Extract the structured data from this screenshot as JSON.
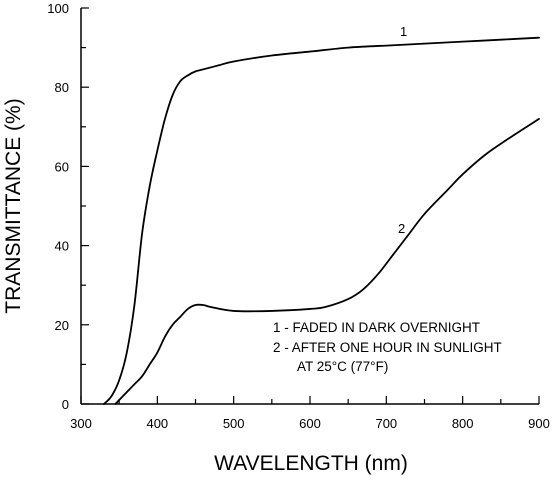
{
  "chart_data": {
    "type": "line",
    "xlabel": "WAVELENGTH (nm)",
    "ylabel": "TRANSMITTANCE (%)",
    "xlim": [
      300,
      900
    ],
    "ylim": [
      0,
      100
    ],
    "x_ticks": [
      300,
      400,
      500,
      600,
      700,
      800,
      900
    ],
    "y_ticks": [
      0,
      20,
      40,
      60,
      80,
      100
    ],
    "series": [
      {
        "name": "1",
        "x": [
          330,
          340,
          350,
          360,
          370,
          380,
          390,
          400,
          410,
          420,
          430,
          440,
          450,
          460,
          480,
          500,
          550,
          600,
          650,
          700,
          750,
          800,
          850,
          900
        ],
        "y": [
          0,
          2,
          6,
          13,
          25,
          43,
          55,
          64,
          72,
          78,
          81.5,
          83,
          84,
          84.5,
          85.5,
          86.5,
          88,
          89,
          90,
          90.5,
          91,
          91.5,
          92,
          92.5
        ]
      },
      {
        "name": "2",
        "x": [
          345,
          360,
          370,
          380,
          390,
          400,
          410,
          420,
          430,
          440,
          450,
          460,
          470,
          500,
          550,
          600,
          620,
          650,
          670,
          690,
          710,
          730,
          750,
          780,
          800,
          830,
          860,
          900
        ],
        "y": [
          0,
          3,
          5,
          7,
          10,
          13,
          17,
          20,
          22,
          24,
          25,
          25,
          24.5,
          23.5,
          23.5,
          24,
          24.5,
          26.5,
          29,
          33,
          38,
          43,
          48,
          54,
          58,
          63,
          67,
          72
        ]
      }
    ],
    "curve_labels": [
      "1",
      "2"
    ],
    "annotations": [
      "1 - FADED IN DARK OVERNIGHT",
      "2 - AFTER ONE HOUR IN SUNLIGHT",
      "AT 25°C (77°F)"
    ],
    "grid": false
  }
}
